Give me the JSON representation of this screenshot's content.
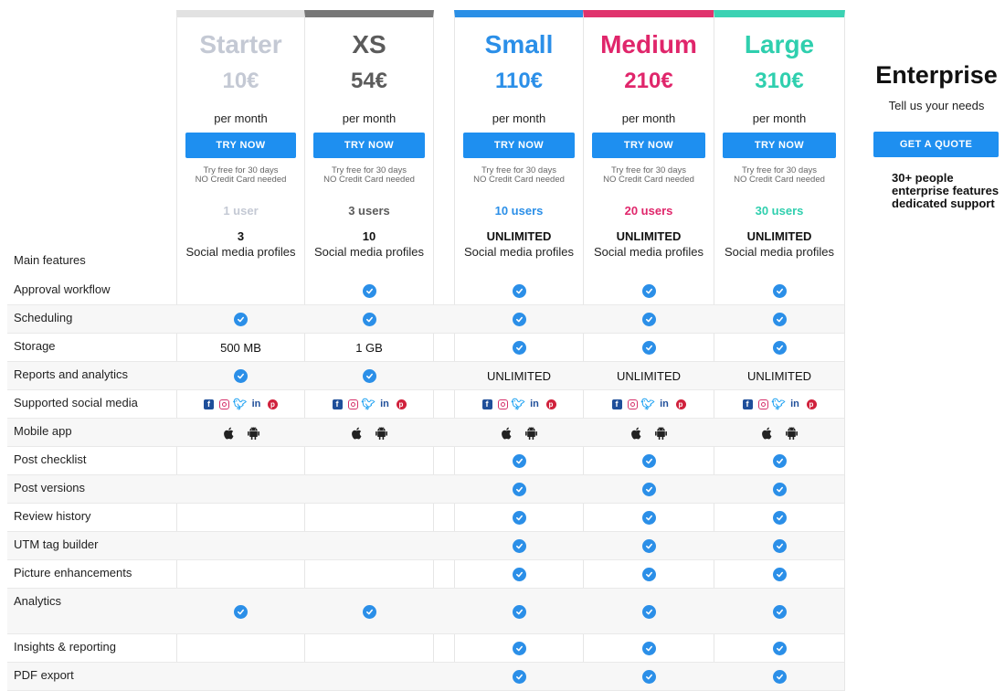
{
  "colors": {
    "starter": "#cccccc",
    "xs": "#7a7a7a",
    "small": "#1e88e5",
    "medium": "#e0266b",
    "large": "#36d1b1",
    "button": "#1e8ff0",
    "check": "#2b8fe8"
  },
  "plans": [
    {
      "name": "Starter",
      "price": "10€",
      "per": "per month",
      "button": "TRY NOW",
      "trial1": "Try free for 30 days",
      "trial2": "NO Credit Card needed",
      "users": "1 user",
      "profiles_count": "3",
      "profiles_label": "Social media profiles",
      "name_color": "#c4c9d4",
      "price_color": "#c4c9d4",
      "users_color": "#c4c9d4"
    },
    {
      "name": "XS",
      "price": "54€",
      "per": "per month",
      "button": "TRY NOW",
      "trial1": "Try free for 30 days",
      "trial2": "NO Credit Card needed",
      "users": "3 users",
      "profiles_count": "10",
      "profiles_label": "Social media profiles",
      "name_color": "#5b5b5b",
      "price_color": "#5b5b5b",
      "users_color": "#5b5b5b"
    },
    {
      "name": "Small",
      "price": "110€",
      "per": "per month",
      "button": "TRY NOW",
      "trial1": "Try free for 30 days",
      "trial2": "NO Credit Card needed",
      "users": "10 users",
      "profiles_count": "UNLIMITED",
      "profiles_label": "Social media profiles",
      "name_color": "#2b8fe8",
      "price_color": "#2b8fe8",
      "users_color": "#2b8fe8"
    },
    {
      "name": "Medium",
      "price": "210€",
      "per": "per month",
      "button": "TRY NOW",
      "trial1": "Try free for 30 days",
      "trial2": "NO Credit Card needed",
      "users": "20 users",
      "profiles_count": "UNLIMITED",
      "profiles_label": "Social media profiles",
      "name_color": "#e0266b",
      "price_color": "#e0266b",
      "users_color": "#e0266b"
    },
    {
      "name": "Large",
      "price": "310€",
      "per": "per month",
      "button": "TRY NOW",
      "trial1": "Try free for 30 days",
      "trial2": "NO Credit Card needed",
      "users": "30 users",
      "profiles_count": "UNLIMITED",
      "profiles_label": "Social media profiles",
      "name_color": "#2fcfae",
      "price_color": "#2fcfae",
      "users_color": "#2fcfae"
    }
  ],
  "enterprise": {
    "name": "Enterprise",
    "subtitle": "Tell us your needs",
    "button": "GET A QUOTE",
    "features": [
      "30+ people",
      "enterprise features",
      "dedicated support"
    ]
  },
  "main_features_label": "Main features",
  "rows": [
    {
      "label": "Approval workflow",
      "cells": [
        "",
        "check",
        "check",
        "check",
        "check"
      ]
    },
    {
      "label": "Scheduling",
      "cells": [
        "check",
        "check",
        "check",
        "check",
        "check"
      ]
    },
    {
      "label": "Storage",
      "cells": [
        "500 MB",
        "1 GB",
        "check",
        "check",
        "check"
      ]
    },
    {
      "label": "Reports and analytics",
      "cells": [
        "check",
        "check",
        "UNLIMITED",
        "UNLIMITED",
        "UNLIMITED"
      ]
    },
    {
      "label": "Supported social media",
      "cells": [
        "social",
        "social",
        "social",
        "social",
        "social"
      ]
    },
    {
      "label": "Mobile app",
      "cells": [
        "mobile",
        "mobile",
        "mobile",
        "mobile",
        "mobile"
      ]
    },
    {
      "label": "Post checklist",
      "cells": [
        "",
        "",
        "check",
        "check",
        "check"
      ]
    },
    {
      "label": "Post versions",
      "cells": [
        "",
        "",
        "check",
        "check",
        "check"
      ]
    },
    {
      "label": "Review history",
      "cells": [
        "",
        "",
        "check",
        "check",
        "check"
      ]
    },
    {
      "label": "UTM tag builder",
      "cells": [
        "",
        "",
        "check",
        "check",
        "check"
      ]
    },
    {
      "label": "Picture enhancements",
      "cells": [
        "",
        "",
        "check",
        "check",
        "check"
      ]
    },
    {
      "label": "Analytics",
      "cells": [
        "check",
        "check",
        "check",
        "check",
        "check"
      ]
    },
    {
      "label": "Insights & reporting",
      "cells": [
        "",
        "",
        "check",
        "check",
        "check"
      ]
    },
    {
      "label": "PDF export",
      "cells": [
        "",
        "",
        "check",
        "check",
        "check"
      ]
    }
  ],
  "icons": {
    "check": "check-circle-icon",
    "social": [
      "facebook-icon",
      "instagram-icon",
      "twitter-icon",
      "linkedin-icon",
      "pinterest-icon"
    ],
    "mobile": [
      "apple-icon",
      "android-icon"
    ]
  }
}
